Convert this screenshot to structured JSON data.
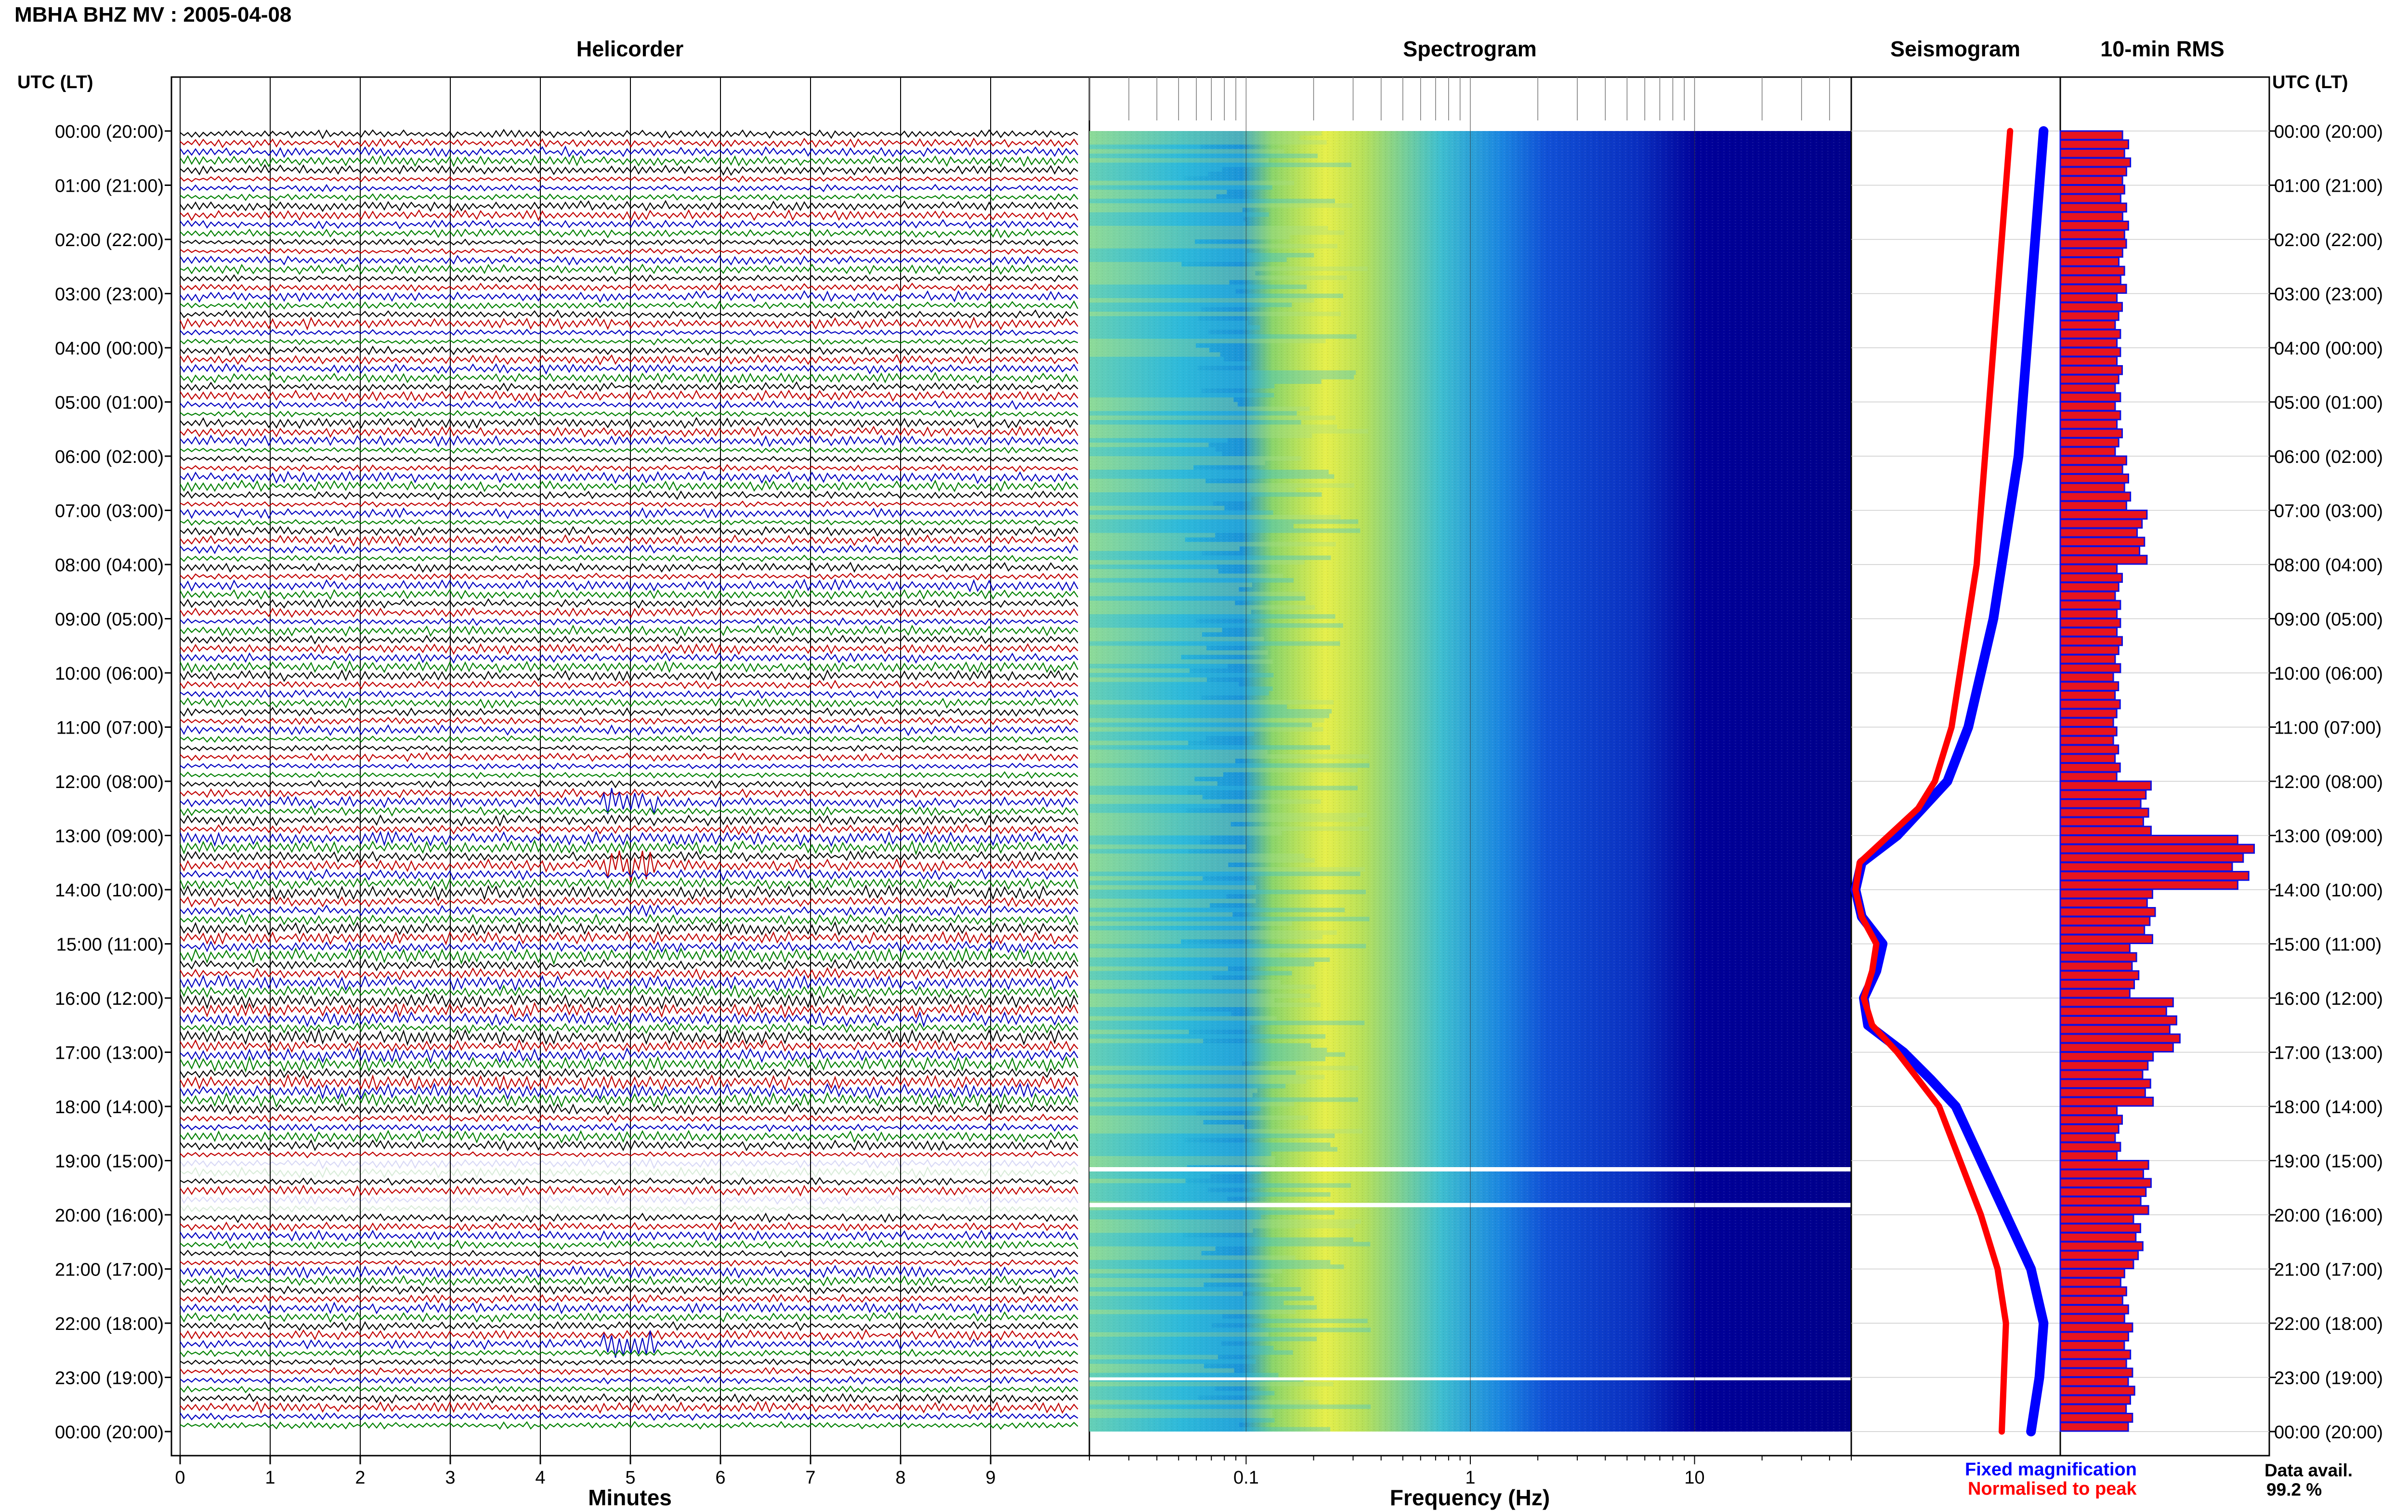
{
  "title": "MBHA BHZ MV : 2005-04-08",
  "panels": {
    "helicorder": "Helicorder",
    "spectrogram": "Spectrogram",
    "seismogram": "Seismogram",
    "rms": "10-min RMS"
  },
  "corner_label_left": "UTC (LT)",
  "corner_label_right": "UTC (LT)",
  "time_labels": [
    "00:00 (20:00)",
    "01:00 (21:00)",
    "02:00 (22:00)",
    "03:00 (23:00)",
    "04:00 (00:00)",
    "05:00 (01:00)",
    "06:00 (02:00)",
    "07:00 (03:00)",
    "08:00 (04:00)",
    "09:00 (05:00)",
    "10:00 (06:00)",
    "11:00 (07:00)",
    "12:00 (08:00)",
    "13:00 (09:00)",
    "14:00 (10:00)",
    "15:00 (11:00)",
    "16:00 (12:00)",
    "17:00 (13:00)",
    "18:00 (14:00)",
    "19:00 (15:00)",
    "20:00 (16:00)",
    "21:00 (17:00)",
    "22:00 (18:00)",
    "23:00 (19:00)",
    "00:00 (20:00)"
  ],
  "helicorder_xlabel": "Minutes",
  "spectrogram_xlabel": "Frequency (Hz)",
  "legend": {
    "fixed": "Fixed magnification",
    "normalised": "Normalised to peak"
  },
  "data_avail": {
    "label": "Data avail.",
    "value": "99.2 %"
  },
  "colors": {
    "trace_cycle": [
      "#000000",
      "#c00000",
      "#0000c0",
      "#008000"
    ],
    "fixed": "#0000ff",
    "normalised": "#ff0000",
    "rms_fill": "#e8141e",
    "rms_edge": "#1010e0",
    "spectrogram_low": "#00008b",
    "spectrogram_high": "#ffff00"
  },
  "chart_data": [
    {
      "type": "line",
      "name": "Helicorder",
      "xlabel": "Minutes",
      "xlim": [
        0,
        10
      ],
      "xticks": [
        0,
        1,
        2,
        3,
        4,
        5,
        6,
        7,
        8,
        9
      ],
      "ylim_hours_utc": [
        0,
        24
      ],
      "lines_per_hour": 6,
      "gaps_utc_hours": [
        [
          19.12,
          19.2
        ],
        [
          19.78,
          19.86
        ]
      ],
      "small_events_utc_hours": [
        12.35,
        13.5,
        16.7,
        22.35
      ]
    },
    {
      "type": "heatmap",
      "name": "Spectrogram",
      "xlabel": "Frequency (Hz)",
      "x_scale": "log",
      "xlim": [
        0.02,
        50
      ],
      "xticks": [
        0.1,
        1,
        10
      ],
      "ylim_hours_utc": [
        0,
        24
      ],
      "peak_frequency_hz": 0.25,
      "gaps_utc_hours": [
        [
          19.12,
          19.2
        ],
        [
          19.78,
          19.86
        ],
        [
          23.0,
          23.05
        ]
      ]
    },
    {
      "type": "line",
      "name": "Seismogram",
      "x": [
        0,
        1,
        2,
        3,
        4,
        5,
        6,
        7,
        8,
        9,
        10,
        11,
        12,
        12.5,
        13,
        13.5,
        14,
        14.5,
        15,
        15.5,
        16,
        16.5,
        17,
        17.5,
        18,
        19,
        20,
        21,
        22,
        23,
        24
      ],
      "series": [
        {
          "name": "Fixed magnification",
          "values": [
            0.92,
            0.9,
            0.88,
            0.86,
            0.84,
            0.82,
            0.8,
            0.76,
            0.72,
            0.68,
            0.62,
            0.56,
            0.46,
            0.34,
            0.22,
            0.05,
            0.02,
            0.05,
            0.15,
            0.12,
            0.06,
            0.08,
            0.25,
            0.38,
            0.5,
            0.62,
            0.74,
            0.86,
            0.92,
            0.9,
            0.86
          ]
        },
        {
          "name": "Normalised to peak",
          "values": [
            0.76,
            0.74,
            0.72,
            0.7,
            0.68,
            0.66,
            0.64,
            0.62,
            0.6,
            0.56,
            0.52,
            0.48,
            0.4,
            0.32,
            0.18,
            0.04,
            0.02,
            0.05,
            0.12,
            0.1,
            0.06,
            0.1,
            0.22,
            0.32,
            0.42,
            0.52,
            0.62,
            0.7,
            0.74,
            0.73,
            0.72
          ]
        }
      ]
    },
    {
      "type": "bar",
      "name": "10-min RMS",
      "orientation": "horizontal",
      "ylim_hours_utc": [
        0,
        24
      ],
      "bin_minutes": 10,
      "hourly_rms_relative": [
        0.34,
        0.33,
        0.32,
        0.3,
        0.3,
        0.3,
        0.34,
        0.42,
        0.3,
        0.3,
        0.29,
        0.29,
        0.44,
        0.94,
        0.46,
        0.38,
        0.58,
        0.45,
        0.3,
        0.44,
        0.4,
        0.33,
        0.35,
        0.36
      ]
    }
  ]
}
